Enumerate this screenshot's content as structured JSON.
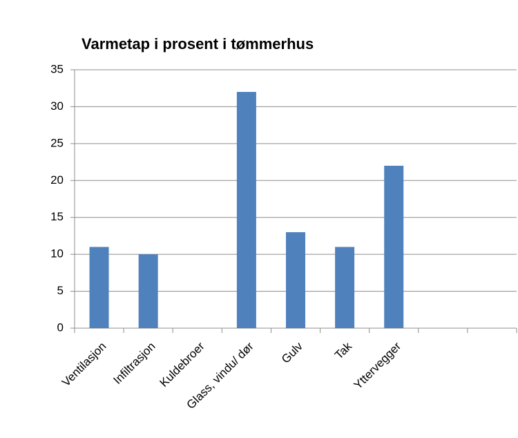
{
  "chart_data": {
    "type": "bar",
    "title": "Varmetap i prosent i tømmerhus",
    "categories": [
      "Ventilasjon",
      "Infiltrasjon",
      "Kuldebroer",
      "Glass, vindu/ dør",
      "Gulv",
      "Tak",
      "Yttervegger",
      null,
      null
    ],
    "values": [
      11,
      10,
      null,
      32,
      13,
      11,
      22,
      null,
      null
    ],
    "color": "#4f81bd",
    "ylim": [
      0,
      35
    ],
    "yticks": [
      0,
      5,
      10,
      15,
      20,
      25,
      30,
      35
    ],
    "grid": true
  }
}
